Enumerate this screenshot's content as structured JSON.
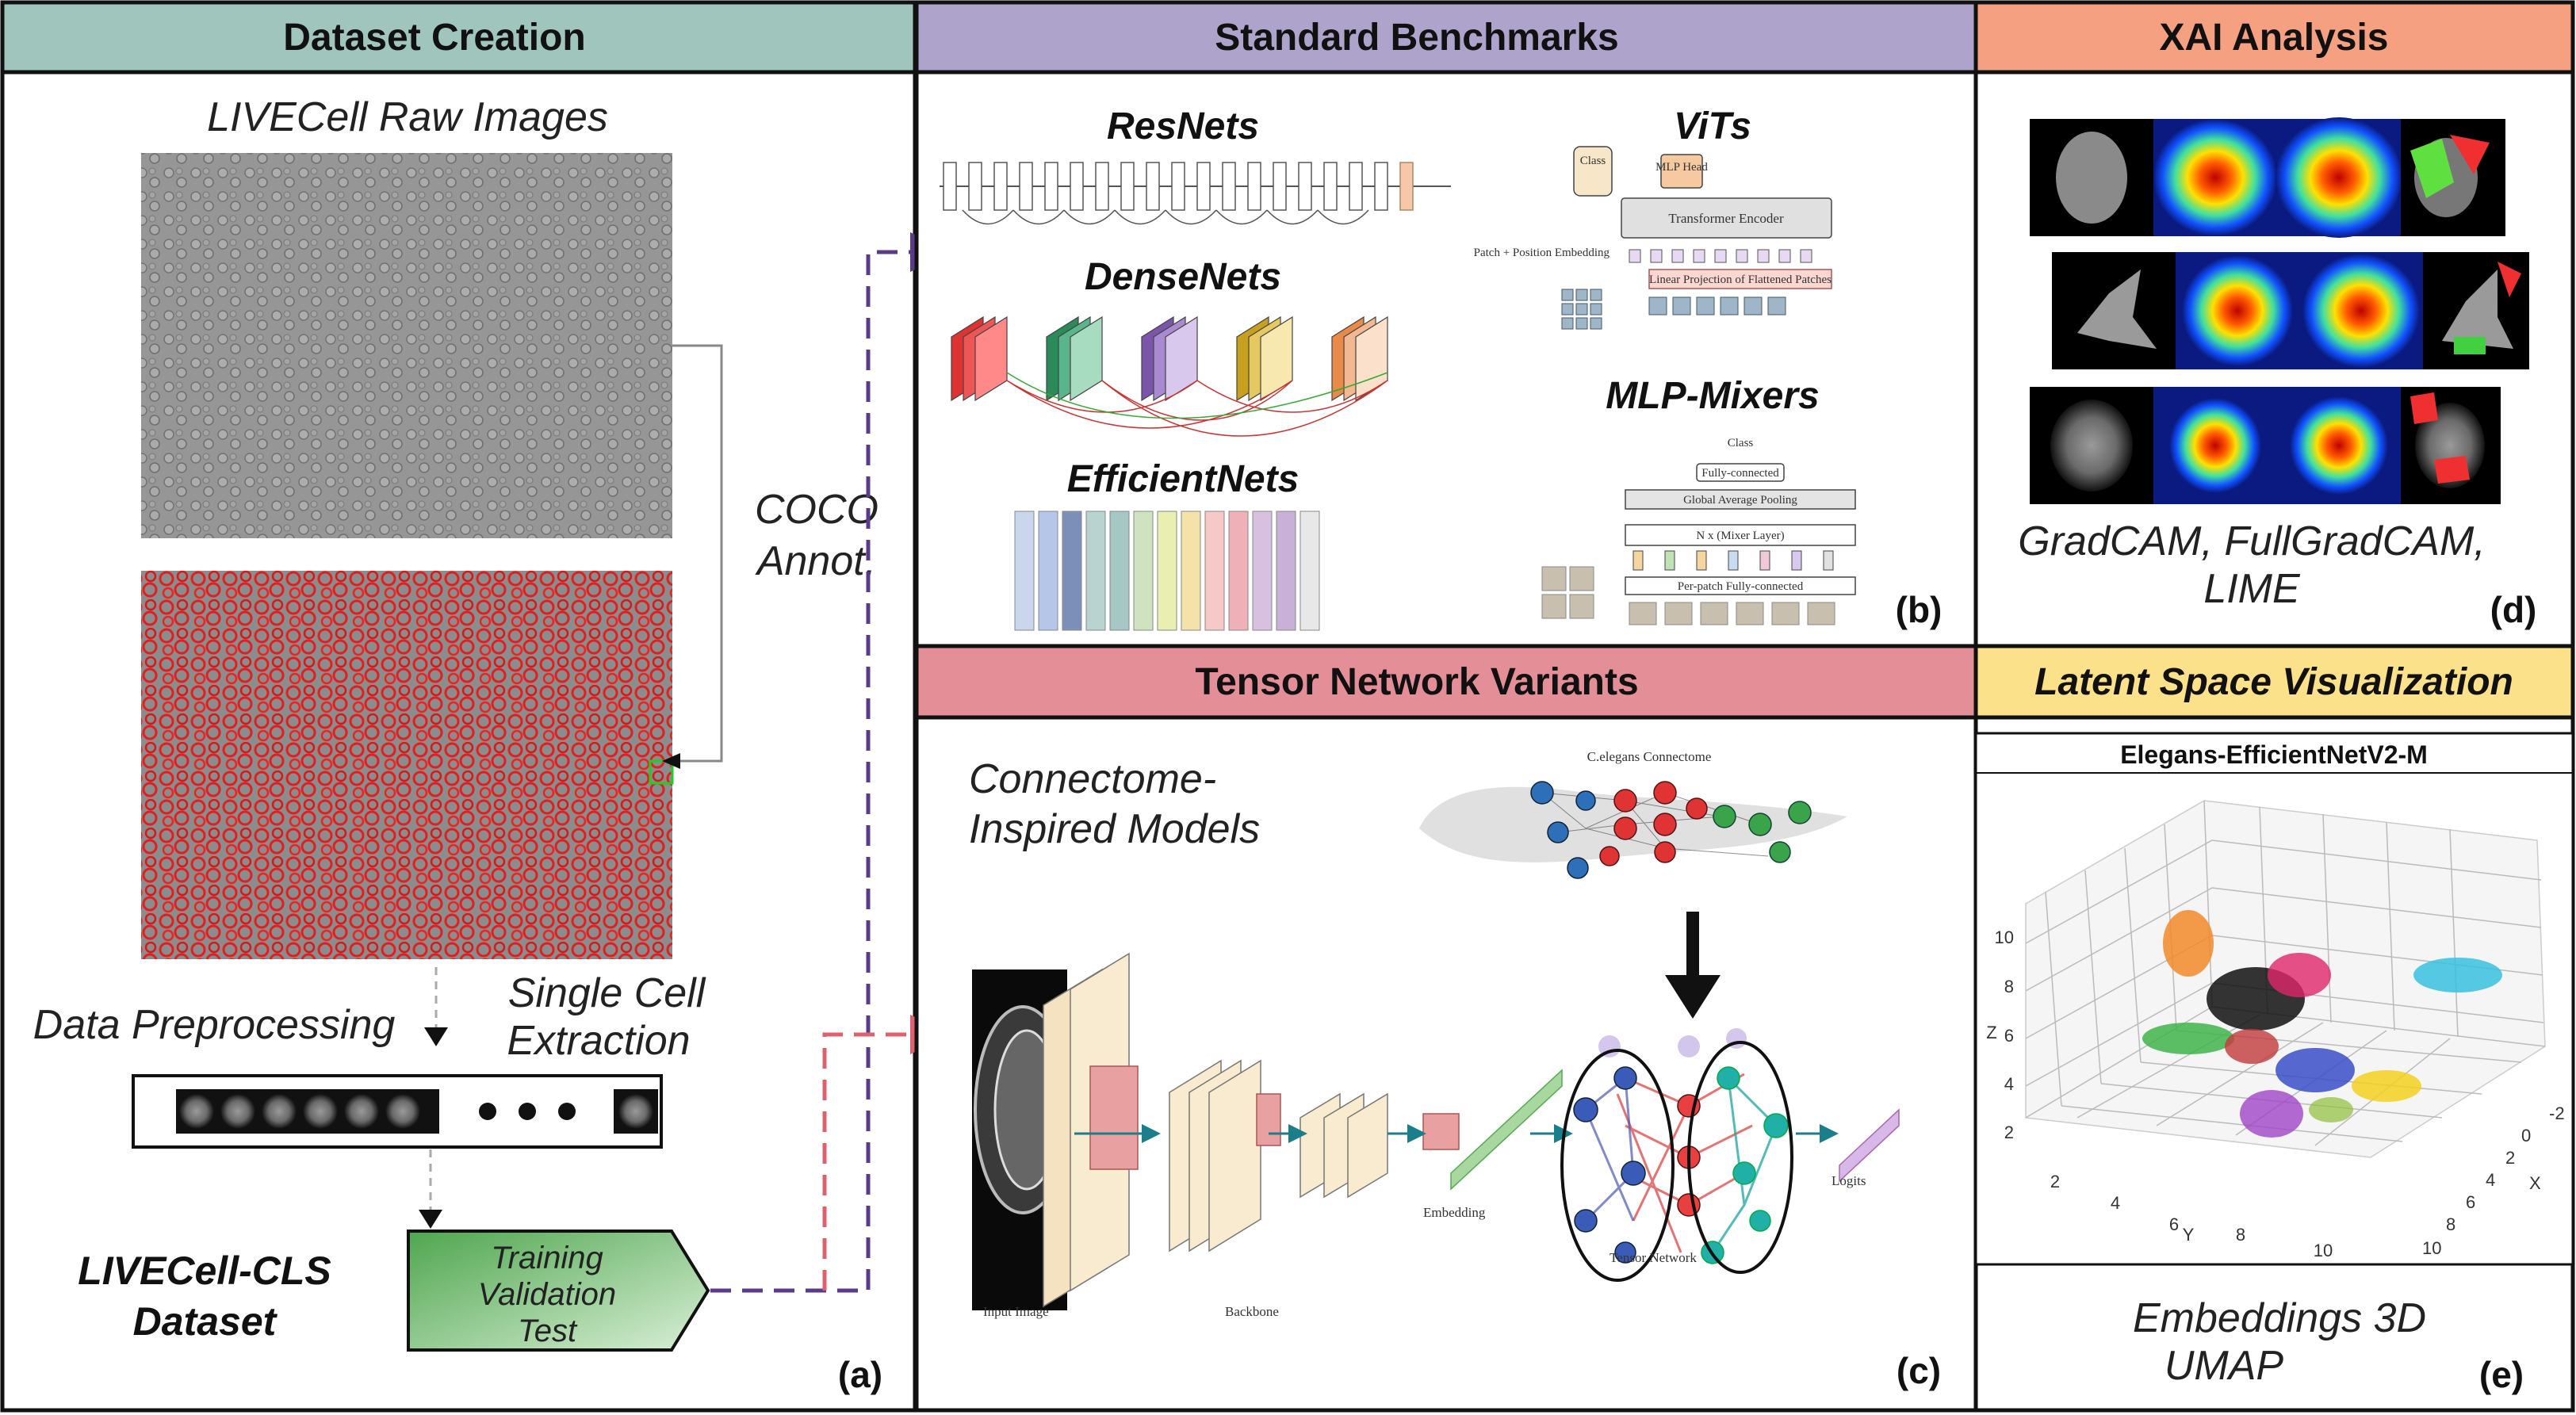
{
  "panels": {
    "a": {
      "header": "Dataset Creation",
      "raw_images_label": "LIVECell Raw Images",
      "coco_label_1": "COCO",
      "coco_label_2": "Annot.",
      "preprocessing_label": "Data Preprocessing",
      "single_cell_1": "Single Cell",
      "single_cell_2": "Extraction",
      "dataset_name_1": "LIVECell-CLS",
      "dataset_name_2": "Dataset",
      "splits": [
        "Training",
        "Validation",
        "Test"
      ],
      "panel_id": "(a)"
    },
    "b": {
      "header": "Standard Benchmarks",
      "models": [
        "ResNets",
        "DenseNets",
        "EfficientNets",
        "ViTs",
        "MLP-Mixers"
      ],
      "vit_texts": {
        "class": "Class",
        "mlp_head": "MLP Head",
        "encoder": "Transformer Encoder",
        "embedding": "Patch + Position Embedding",
        "projection": "Linear Projection of Flattened Patches"
      },
      "mixer_texts": {
        "class": "Class",
        "fc": "Fully-connected",
        "gap": "Global Average Pooling",
        "mixer": "N x (Mixer Layer)",
        "per_patch": "Per-patch Fully-connected"
      },
      "panel_id": "(b)"
    },
    "c": {
      "header": "Tensor Network Variants",
      "subtitle_1": "Connectome-",
      "subtitle_2": "Inspired Models",
      "connectome_label": "C.elegans Connectome",
      "labels": {
        "input": "Input Image",
        "backbone": "Backbone",
        "embedding": "Embedding",
        "tensor": "Tensor Network",
        "logits": "Logits"
      },
      "panel_id": "(c)"
    },
    "d": {
      "header": "XAI Analysis",
      "methods_1": "GradCAM, FullGradCAM,",
      "methods_2": "LIME",
      "panel_id": "(d)"
    },
    "e": {
      "header": "Latent Space Visualization",
      "plot_title": "Elegans-EfficientNetV2-M",
      "caption_1": "Embeddings 3D",
      "caption_2": "UMAP",
      "panel_id": "(e)"
    }
  },
  "chart_data": {
    "type": "scatter",
    "title": "Elegans-EfficientNetV2-M",
    "xlabel": "X",
    "ylabel": "Y",
    "zlabel": "Z",
    "x_ticks": [
      -2,
      0,
      2,
      4,
      6,
      8,
      10
    ],
    "y_ticks": [
      2,
      4,
      6,
      8,
      10
    ],
    "z_ticks": [
      2,
      4,
      6,
      8,
      10
    ],
    "grid": true
  },
  "colors": {
    "header_a": "#9fc5bd",
    "header_b": "#aea4cb",
    "header_c": "#e48f98",
    "header_d": "#f6a082",
    "header_e": "#fbe189",
    "arrow_purple": "#5b3a8c",
    "arrow_pink": "#e06070",
    "dataset_green": "#5eb35e",
    "annot_red": "#e02020"
  }
}
